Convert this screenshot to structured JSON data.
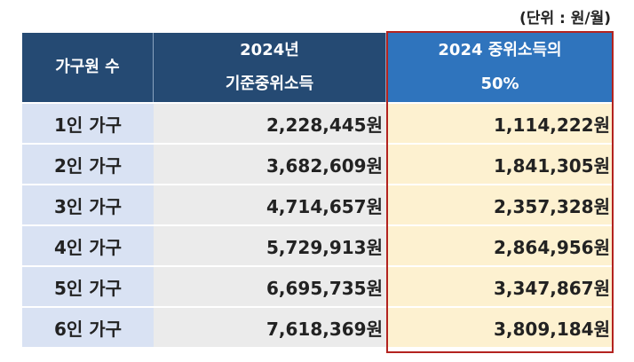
{
  "unit_note": "(단위 : 원/월)",
  "header": {
    "col1": "가구원 수",
    "col2_line1": "2024년",
    "col2_line2": "기준중위소득",
    "col3_line1": "2024 중위소득의",
    "col3_line2": "50%"
  },
  "rows": [
    {
      "household": "1인 가구",
      "median": "2,228,445원",
      "half": "1,114,222원"
    },
    {
      "household": "2인 가구",
      "median": "3,682,609원",
      "half": "1,841,305원"
    },
    {
      "household": "3인 가구",
      "median": "4,714,657원",
      "half": "2,357,328원"
    },
    {
      "household": "4인 가구",
      "median": "5,729,913원",
      "half": "2,864,956원"
    },
    {
      "household": "5인 가구",
      "median": "6,695,735원",
      "half": "3,347,867원"
    },
    {
      "household": "6인 가구",
      "median": "7,618,369원",
      "half": "3,809,184원"
    }
  ],
  "colors": {
    "header_bg": "#254a73",
    "highlight_header_bg": "#2f74bd",
    "label_bg": "#d9e2f3",
    "value_bg": "#ebebeb",
    "highlight_bg": "#fdf1d0",
    "frame": "#b3231f"
  }
}
